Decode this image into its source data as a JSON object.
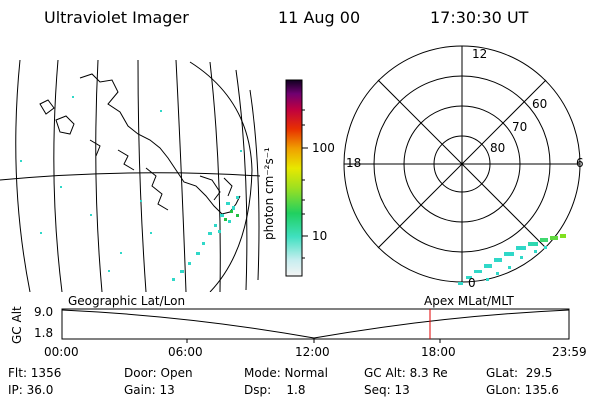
{
  "header": {
    "instrument": "Ultraviolet Imager",
    "date": "11 Aug 00",
    "time": "17:30:30 UT"
  },
  "colorbar": {
    "unit": "photon cm⁻²s⁻¹",
    "ticks": [
      "100",
      "10"
    ]
  },
  "polar": {
    "mlt_labels": {
      "top": "12",
      "left": "18",
      "right": "6",
      "bottom": "0"
    },
    "lat_labels": [
      "60",
      "70",
      "80"
    ]
  },
  "panels": {
    "left_label": "Geographic Lat/Lon",
    "right_label": "Apex MLat/MLT"
  },
  "altitude_plot": {
    "ylabel": "GC Alt",
    "ymax": "9.0",
    "ymin": "1.8",
    "xticks": [
      "00:00",
      "06:00",
      "12:00",
      "18:00",
      "23:59"
    ],
    "current_marker_color": "#e00000"
  },
  "status": {
    "flt": "Flt: 1356",
    "ip": "IP: 36.0",
    "door": "Door: Open",
    "gain": "Gain: 13",
    "mode": "Mode: Normal",
    "dsp": "Dsp:    1.8",
    "gc_alt": "GC Alt: 8.3 Re",
    "seq": "Seq: 13",
    "glat": "GLat:  29.5",
    "glon": "GLon: 135.6"
  }
}
